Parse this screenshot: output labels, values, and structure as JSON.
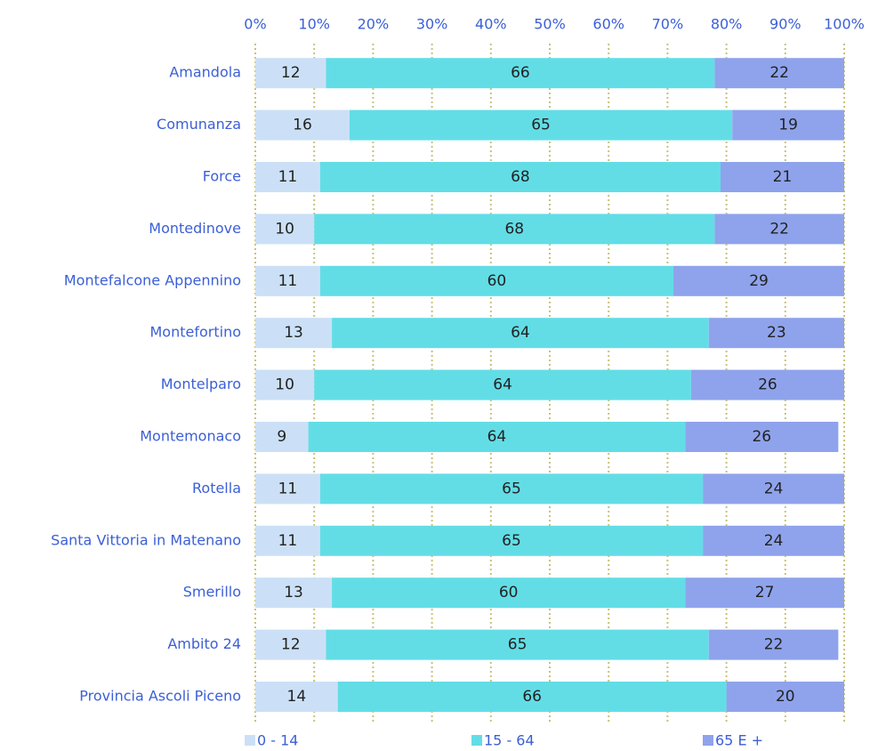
{
  "chart_data": {
    "type": "stacked-bar-horizontal",
    "categories": [
      "Amandola",
      "Comunanza",
      "Force",
      "Montedinove",
      "Montefalcone Appennino",
      "Montefortino",
      "Montelparo",
      "Montemonaco",
      "Rotella",
      "Santa Vittoria in Matenano",
      "Smerillo",
      "Ambito 24",
      "Provincia Ascoli Piceno"
    ],
    "series": [
      {
        "name": "0 - 14",
        "color": "#cbe0f6",
        "values": [
          12,
          16,
          11,
          10,
          11,
          13,
          10,
          9,
          11,
          11,
          13,
          12,
          14
        ]
      },
      {
        "name": "15 - 64",
        "color": "#62dde6",
        "values": [
          66,
          65,
          68,
          68,
          60,
          64,
          64,
          64,
          65,
          65,
          60,
          65,
          66
        ]
      },
      {
        "name": "65 E +",
        "color": "#8fa3ec",
        "values": [
          22,
          19,
          21,
          22,
          29,
          23,
          26,
          26,
          24,
          24,
          27,
          22,
          20
        ]
      }
    ],
    "xlim": [
      0,
      100
    ],
    "xticks": [
      {
        "value": 0,
        "label": "0%"
      },
      {
        "value": 10,
        "label": "10%"
      },
      {
        "value": 20,
        "label": "20%"
      },
      {
        "value": 30,
        "label": "30%"
      },
      {
        "value": 40,
        "label": "40%"
      },
      {
        "value": 50,
        "label": "50%"
      },
      {
        "value": 60,
        "label": "60%"
      },
      {
        "value": 70,
        "label": "70%"
      },
      {
        "value": 80,
        "label": "80%"
      },
      {
        "value": 90,
        "label": "90%"
      },
      {
        "value": 100,
        "label": "100%"
      }
    ],
    "grid": true,
    "legend": "bottom"
  }
}
